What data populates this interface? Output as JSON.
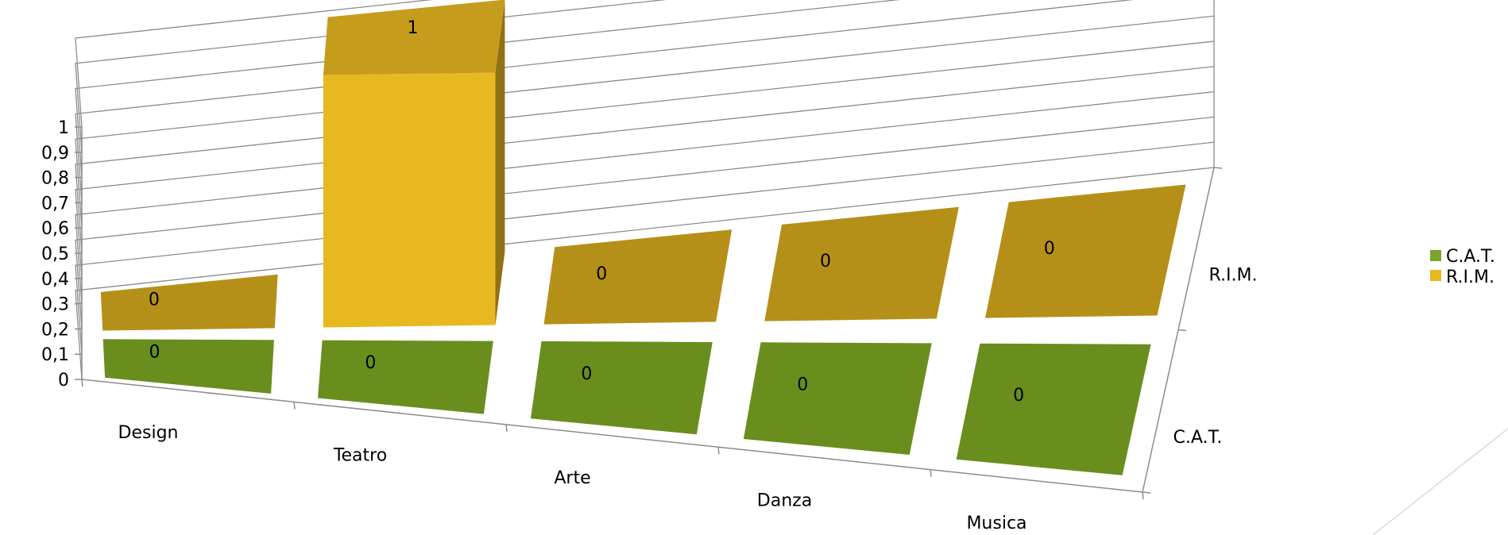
{
  "chart_data": {
    "type": "bar",
    "title": "",
    "xlabel": "",
    "ylabel": "",
    "ylim": [
      0,
      1
    ],
    "y_ticks": [
      "0",
      "0,1",
      "0,2",
      "0,3",
      "0,4",
      "0,5",
      "0,6",
      "0,7",
      "0,8",
      "0,9",
      "1"
    ],
    "categories": [
      "Design",
      "Teatro",
      "Arte",
      "Danza",
      "Musica"
    ],
    "series": [
      {
        "name": "C.A.T.",
        "values": [
          0,
          0,
          0,
          0,
          0
        ],
        "color": "#6e951e"
      },
      {
        "name": "R.I.M.",
        "values": [
          0,
          1,
          0,
          0,
          0
        ],
        "color": "#e8b820"
      }
    ],
    "depth_labels": [
      "R.I.M.",
      "C.A.T."
    ],
    "legend": "right",
    "grid": true
  }
}
